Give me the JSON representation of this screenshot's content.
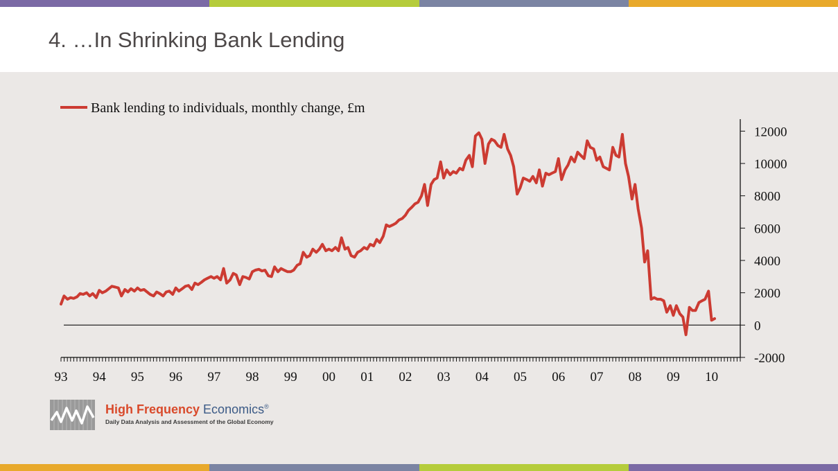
{
  "slide": {
    "title": "4.  …In Shrinking Bank Lending",
    "stripe_colors": [
      "#7b6aa5",
      "#b5cc3b",
      "#7b84a3",
      "#e8a92b"
    ]
  },
  "logo": {
    "name_part1": "High Frequency",
    "name_part2": "Economics",
    "registered": "®",
    "tagline": "Daily Data Analysis and Assessment of the Global Economy",
    "mark_icon": "wave-line-logo-icon"
  },
  "chart_data": {
    "type": "line",
    "series": [
      {
        "name": "Bank lending to individuals, monthly change, £m",
        "color": "#cc3b32",
        "points": [
          [
            1993.0,
            1300
          ],
          [
            1993.08,
            1800
          ],
          [
            1993.17,
            1600
          ],
          [
            1993.25,
            1700
          ],
          [
            1993.33,
            1650
          ],
          [
            1993.42,
            1750
          ],
          [
            1993.5,
            1950
          ],
          [
            1993.58,
            1900
          ],
          [
            1993.67,
            2000
          ],
          [
            1993.75,
            1800
          ],
          [
            1993.83,
            1950
          ],
          [
            1993.92,
            1700
          ],
          [
            1994.0,
            2150
          ],
          [
            1994.08,
            2000
          ],
          [
            1994.17,
            2100
          ],
          [
            1994.25,
            2250
          ],
          [
            1994.33,
            2400
          ],
          [
            1994.42,
            2350
          ],
          [
            1994.5,
            2300
          ],
          [
            1994.58,
            1800
          ],
          [
            1994.67,
            2200
          ],
          [
            1994.75,
            2050
          ],
          [
            1994.83,
            2250
          ],
          [
            1994.92,
            2100
          ],
          [
            1995.0,
            2300
          ],
          [
            1995.08,
            2150
          ],
          [
            1995.17,
            2200
          ],
          [
            1995.25,
            2050
          ],
          [
            1995.33,
            1900
          ],
          [
            1995.42,
            1800
          ],
          [
            1995.5,
            2050
          ],
          [
            1995.58,
            1950
          ],
          [
            1995.67,
            1800
          ],
          [
            1995.75,
            2050
          ],
          [
            1995.83,
            2100
          ],
          [
            1995.92,
            1900
          ],
          [
            1996.0,
            2300
          ],
          [
            1996.08,
            2100
          ],
          [
            1996.17,
            2250
          ],
          [
            1996.25,
            2400
          ],
          [
            1996.33,
            2450
          ],
          [
            1996.42,
            2200
          ],
          [
            1996.5,
            2600
          ],
          [
            1996.58,
            2500
          ],
          [
            1996.67,
            2650
          ],
          [
            1996.75,
            2800
          ],
          [
            1996.83,
            2900
          ],
          [
            1996.92,
            3000
          ],
          [
            1997.0,
            2900
          ],
          [
            1997.08,
            3000
          ],
          [
            1997.17,
            2800
          ],
          [
            1997.25,
            3500
          ],
          [
            1997.33,
            2600
          ],
          [
            1997.42,
            2800
          ],
          [
            1997.5,
            3200
          ],
          [
            1997.58,
            3100
          ],
          [
            1997.67,
            2500
          ],
          [
            1997.75,
            3000
          ],
          [
            1997.83,
            2950
          ],
          [
            1997.92,
            2850
          ],
          [
            1998.0,
            3300
          ],
          [
            1998.08,
            3400
          ],
          [
            1998.17,
            3450
          ],
          [
            1998.25,
            3350
          ],
          [
            1998.33,
            3400
          ],
          [
            1998.42,
            3050
          ],
          [
            1998.5,
            3000
          ],
          [
            1998.58,
            3600
          ],
          [
            1998.67,
            3300
          ],
          [
            1998.75,
            3500
          ],
          [
            1998.83,
            3400
          ],
          [
            1998.92,
            3300
          ],
          [
            1999.0,
            3300
          ],
          [
            1999.08,
            3400
          ],
          [
            1999.17,
            3700
          ],
          [
            1999.25,
            3800
          ],
          [
            1999.33,
            4500
          ],
          [
            1999.42,
            4200
          ],
          [
            1999.5,
            4300
          ],
          [
            1999.58,
            4700
          ],
          [
            1999.67,
            4500
          ],
          [
            1999.75,
            4700
          ],
          [
            1999.83,
            5000
          ],
          [
            1999.92,
            4600
          ],
          [
            2000.0,
            4700
          ],
          [
            2000.08,
            4600
          ],
          [
            2000.17,
            4800
          ],
          [
            2000.25,
            4600
          ],
          [
            2000.33,
            5400
          ],
          [
            2000.42,
            4700
          ],
          [
            2000.5,
            4800
          ],
          [
            2000.58,
            4300
          ],
          [
            2000.67,
            4200
          ],
          [
            2000.75,
            4500
          ],
          [
            2000.83,
            4600
          ],
          [
            2000.92,
            4800
          ],
          [
            2001.0,
            4700
          ],
          [
            2001.08,
            5000
          ],
          [
            2001.17,
            4900
          ],
          [
            2001.25,
            5300
          ],
          [
            2001.33,
            5100
          ],
          [
            2001.42,
            5500
          ],
          [
            2001.5,
            6200
          ],
          [
            2001.58,
            6100
          ],
          [
            2001.67,
            6200
          ],
          [
            2001.75,
            6300
          ],
          [
            2001.83,
            6500
          ],
          [
            2001.92,
            6600
          ],
          [
            2002.0,
            6800
          ],
          [
            2002.08,
            7100
          ],
          [
            2002.17,
            7300
          ],
          [
            2002.25,
            7500
          ],
          [
            2002.33,
            7600
          ],
          [
            2002.42,
            8000
          ],
          [
            2002.5,
            8700
          ],
          [
            2002.58,
            7400
          ],
          [
            2002.67,
            8700
          ],
          [
            2002.75,
            9000
          ],
          [
            2002.83,
            9100
          ],
          [
            2002.92,
            10100
          ],
          [
            2003.0,
            9100
          ],
          [
            2003.08,
            9600
          ],
          [
            2003.17,
            9300
          ],
          [
            2003.25,
            9500
          ],
          [
            2003.33,
            9400
          ],
          [
            2003.42,
            9700
          ],
          [
            2003.5,
            9600
          ],
          [
            2003.58,
            10200
          ],
          [
            2003.67,
            10500
          ],
          [
            2003.75,
            9800
          ],
          [
            2003.83,
            11700
          ],
          [
            2003.92,
            11900
          ],
          [
            2004.0,
            11500
          ],
          [
            2004.08,
            10000
          ],
          [
            2004.17,
            11200
          ],
          [
            2004.25,
            11500
          ],
          [
            2004.33,
            11400
          ],
          [
            2004.42,
            11100
          ],
          [
            2004.5,
            11000
          ],
          [
            2004.58,
            11800
          ],
          [
            2004.67,
            10900
          ],
          [
            2004.75,
            10500
          ],
          [
            2004.83,
            9800
          ],
          [
            2004.92,
            8100
          ],
          [
            2005.0,
            8500
          ],
          [
            2005.08,
            9100
          ],
          [
            2005.17,
            9000
          ],
          [
            2005.25,
            8900
          ],
          [
            2005.33,
            9200
          ],
          [
            2005.42,
            8800
          ],
          [
            2005.5,
            9600
          ],
          [
            2005.58,
            8600
          ],
          [
            2005.67,
            9400
          ],
          [
            2005.75,
            9300
          ],
          [
            2005.83,
            9400
          ],
          [
            2005.92,
            9500
          ],
          [
            2006.0,
            10300
          ],
          [
            2006.08,
            9000
          ],
          [
            2006.17,
            9600
          ],
          [
            2006.25,
            9900
          ],
          [
            2006.33,
            10400
          ],
          [
            2006.42,
            10100
          ],
          [
            2006.5,
            10700
          ],
          [
            2006.58,
            10500
          ],
          [
            2006.67,
            10300
          ],
          [
            2006.75,
            11400
          ],
          [
            2006.83,
            11000
          ],
          [
            2006.92,
            10900
          ],
          [
            2007.0,
            10200
          ],
          [
            2007.08,
            10400
          ],
          [
            2007.17,
            9800
          ],
          [
            2007.25,
            9700
          ],
          [
            2007.33,
            9600
          ],
          [
            2007.42,
            11000
          ],
          [
            2007.5,
            10500
          ],
          [
            2007.58,
            10400
          ],
          [
            2007.67,
            11800
          ],
          [
            2007.75,
            10000
          ],
          [
            2007.83,
            9200
          ],
          [
            2007.92,
            7800
          ],
          [
            2008.0,
            8700
          ],
          [
            2008.08,
            7200
          ],
          [
            2008.17,
            6000
          ],
          [
            2008.25,
            3900
          ],
          [
            2008.33,
            4600
          ],
          [
            2008.42,
            1600
          ],
          [
            2008.5,
            1700
          ],
          [
            2008.58,
            1600
          ],
          [
            2008.67,
            1600
          ],
          [
            2008.75,
            1500
          ],
          [
            2008.83,
            800
          ],
          [
            2008.92,
            1200
          ],
          [
            2009.0,
            600
          ],
          [
            2009.08,
            1200
          ],
          [
            2009.17,
            700
          ],
          [
            2009.25,
            500
          ],
          [
            2009.33,
            -600
          ],
          [
            2009.42,
            1100
          ],
          [
            2009.5,
            900
          ],
          [
            2009.58,
            900
          ],
          [
            2009.67,
            1400
          ],
          [
            2009.75,
            1500
          ],
          [
            2009.83,
            1600
          ],
          [
            2009.92,
            2100
          ],
          [
            2010.0,
            300
          ],
          [
            2010.08,
            400
          ]
        ]
      }
    ],
    "x_tick_labels": [
      "93",
      "94",
      "95",
      "96",
      "97",
      "98",
      "99",
      "00",
      "01",
      "02",
      "03",
      "04",
      "05",
      "06",
      "07",
      "08",
      "09",
      "10"
    ],
    "x_tick_values": [
      1993,
      1994,
      1995,
      1996,
      1997,
      1998,
      1999,
      2000,
      2001,
      2002,
      2003,
      2004,
      2005,
      2006,
      2007,
      2008,
      2009,
      2010
    ],
    "y_ticks": [
      12000,
      10000,
      8000,
      6000,
      4000,
      2000,
      0,
      -2000
    ],
    "y_tick_labels": [
      "12000",
      "10000",
      "8000",
      "6000",
      "4000",
      "2000",
      "0",
      "-2000"
    ],
    "xlim": [
      1993,
      2010.75
    ],
    "ylim": [
      -2000,
      13000
    ],
    "y_axis_side": "right",
    "zero_line": true,
    "grid": false,
    "legend_position": "top-left",
    "title": "",
    "xlabel": "",
    "ylabel": ""
  }
}
